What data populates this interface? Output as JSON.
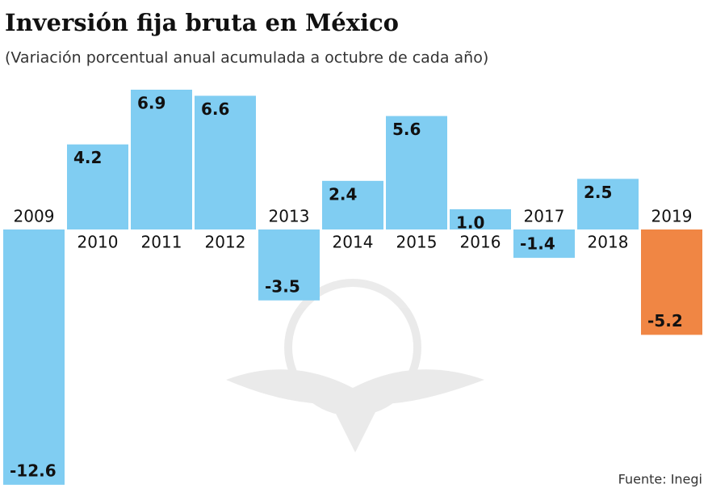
{
  "chart_data": {
    "type": "bar",
    "title": "Inversión fija bruta en México",
    "subtitle": "(Variación porcentual anual acumulada a octubre de cada año)",
    "source": "Fuente: Inegi",
    "categories": [
      "2009",
      "2010",
      "2011",
      "2012",
      "2013",
      "2014",
      "2015",
      "2016",
      "2017",
      "2018",
      "2019"
    ],
    "values": [
      -12.6,
      4.2,
      6.9,
      6.6,
      -3.5,
      2.4,
      5.6,
      1.0,
      -1.4,
      2.5,
      -5.2
    ],
    "value_labels": [
      "-12.6",
      "4.2",
      "6.9",
      "6.6",
      "-3.5",
      "2.4",
      "5.6",
      "1.0",
      "-1.4",
      "2.5",
      "-5.2"
    ],
    "colors": [
      "#80cdf2",
      "#80cdf2",
      "#80cdf2",
      "#80cdf2",
      "#80cdf2",
      "#80cdf2",
      "#80cdf2",
      "#80cdf2",
      "#80cdf2",
      "#80cdf2",
      "#f08644"
    ]
  }
}
